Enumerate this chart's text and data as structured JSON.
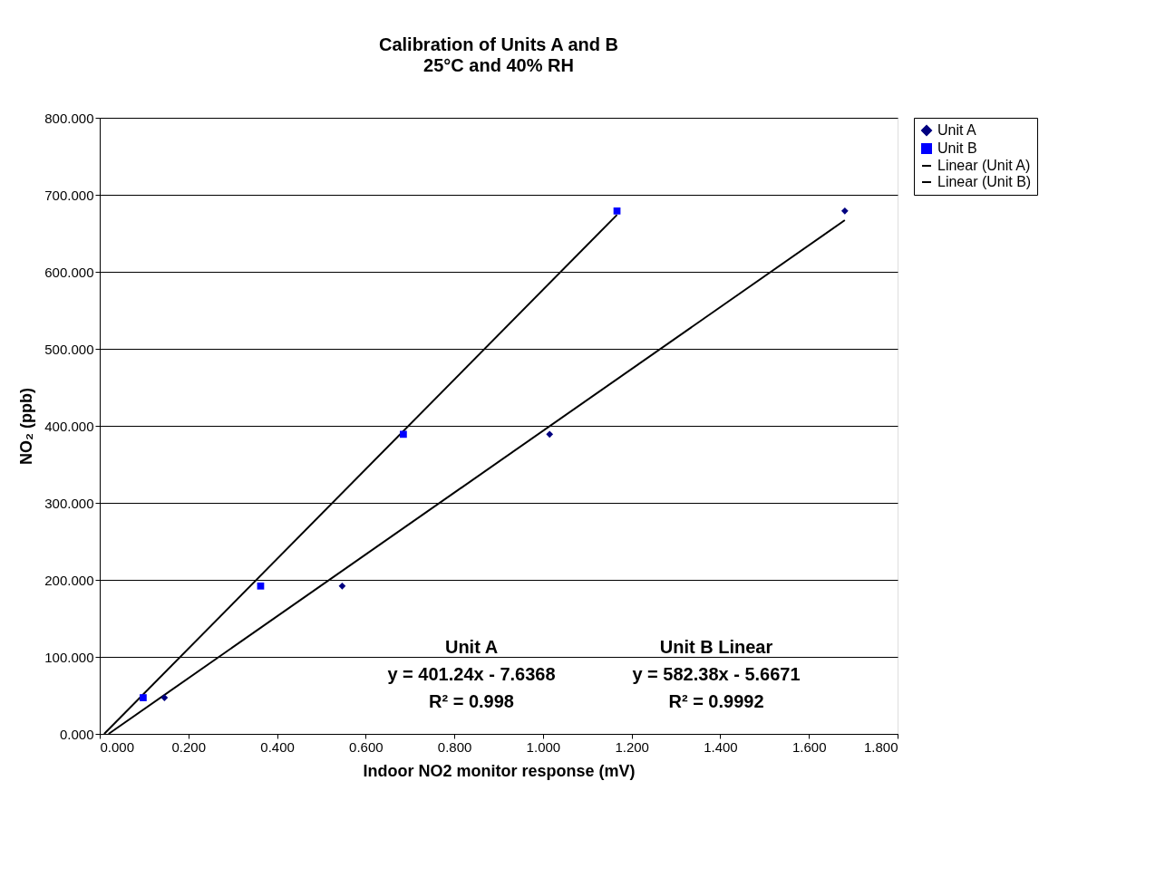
{
  "chart_data": {
    "type": "scatter",
    "title": "Calibration of Units A and B",
    "subtitle": "25°C and 40% RH",
    "xlabel": "Indoor NO2 monitor response (mV)",
    "ylabel": "NO₂ (ppb)",
    "series": [
      {
        "name": "Unit A",
        "color": "#000080",
        "marker": "diamond",
        "x": [
          0.146,
          0.547,
          1.015,
          1.681
        ],
        "values": [
          47,
          192,
          389,
          679
        ]
      },
      {
        "name": "Unit B",
        "color": "#0000ff",
        "marker": "square",
        "x": [
          0.098,
          0.363,
          0.685,
          1.167
        ],
        "values": [
          47,
          192,
          389,
          679
        ]
      },
      {
        "name": "Linear (Unit A)",
        "type": "line",
        "color": "#000000",
        "marker": "none",
        "x": [
          0.02,
          1.681
        ],
        "values": [
          0,
          667
        ]
      },
      {
        "name": "Linear (Unit B)",
        "type": "line",
        "color": "#000000",
        "marker": "none",
        "x": [
          0.01,
          1.167
        ],
        "values": [
          0,
          674
        ]
      }
    ],
    "xlim": [
      0,
      1.8
    ],
    "ylim": [
      0,
      800
    ],
    "xticks": [
      {
        "value": 0,
        "label": "0.000"
      },
      {
        "value": 0.2,
        "label": "0.200"
      },
      {
        "value": 0.4,
        "label": "0.400"
      },
      {
        "value": 0.6,
        "label": "0.600"
      },
      {
        "value": 0.8,
        "label": "0.800"
      },
      {
        "value": 1.0,
        "label": "1.000"
      },
      {
        "value": 1.2,
        "label": "1.200"
      },
      {
        "value": 1.4,
        "label": "1.400"
      },
      {
        "value": 1.6,
        "label": "1.600"
      },
      {
        "value": 1.8,
        "label": "1.800"
      }
    ],
    "yticks": [
      {
        "value": 0,
        "label": "0.000"
      },
      {
        "value": 100,
        "label": "100.000"
      },
      {
        "value": 200,
        "label": "200.000"
      },
      {
        "value": 300,
        "label": "300.000"
      },
      {
        "value": 400,
        "label": "400.000"
      },
      {
        "value": 500,
        "label": "500.000"
      },
      {
        "value": 600,
        "label": "600.000"
      },
      {
        "value": 700,
        "label": "700.000"
      },
      {
        "value": 800,
        "label": "800.000"
      }
    ],
    "annotations": [
      "Unit A\ny = 401.24x - 7.6368\nR² = 0.998",
      "Unit B Linear\ny = 582.38x - 5.6671\nR² = 0.9992"
    ],
    "grid": "y",
    "legend": "right"
  }
}
